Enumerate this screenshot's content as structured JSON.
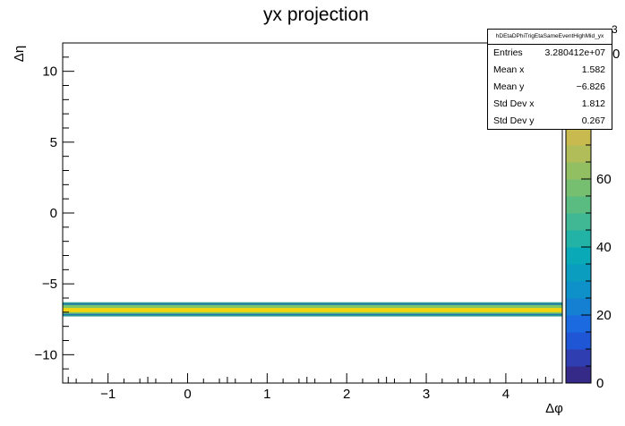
{
  "colors": {
    "frame": "#000000",
    "band_outer": "#2a9d8f",
    "band_edge": "#1f77b4",
    "band_mid": "#7cc66a",
    "band_core": "#f2d50f",
    "palette": [
      "#352a87",
      "#2f3fb2",
      "#1f56d6",
      "#1c6ae0",
      "#1580d2",
      "#0e90c8",
      "#0a9dc0",
      "#0aa9b8",
      "#22b2a6",
      "#3fb893",
      "#5abc80",
      "#77bf70",
      "#93bf63",
      "#b0bd58",
      "#c9ba4f",
      "#deb747",
      "#eeb63e",
      "#f7c337",
      "#f9d52b",
      "#f9e721"
    ]
  },
  "chart_data": {
    "type": "heatmap",
    "title": "yx projection",
    "xlabel": "Δφ",
    "ylabel": "Δη",
    "xlim": [
      -1.57,
      4.71
    ],
    "ylim": [
      -12,
      12
    ],
    "x_ticks": [
      -1,
      0,
      1,
      2,
      3,
      4
    ],
    "x_tick_labels": [
      "−1",
      "0",
      "1",
      "2",
      "3",
      "4"
    ],
    "y_ticks": [
      -10,
      -5,
      0,
      5,
      10
    ],
    "y_tick_labels": [
      "−10",
      "−5",
      "0",
      "5",
      "10"
    ],
    "band": {
      "y_low": -7.3,
      "y_high": -6.3,
      "core_low": -7.0,
      "core_high": -6.7
    },
    "z_ticks": [
      0,
      20,
      40,
      60,
      80
    ],
    "z_tick_labels": [
      "0",
      "20",
      "40",
      "60",
      "80"
    ],
    "z_max": 100,
    "z_tick_label_top": "0",
    "z_exponent_label": "3",
    "stats": {
      "name": "hDEtaDPhiTrigEtaSameEventHighMid_yx",
      "rows": [
        {
          "label": "Entries",
          "value": "3.280412e+07"
        },
        {
          "label": "Mean x",
          "value": "1.582"
        },
        {
          "label": "Mean y",
          "value": "−6.826"
        },
        {
          "label": "Std Dev x",
          "value": "1.812"
        },
        {
          "label": "Std Dev y",
          "value": "0.267"
        }
      ]
    }
  }
}
